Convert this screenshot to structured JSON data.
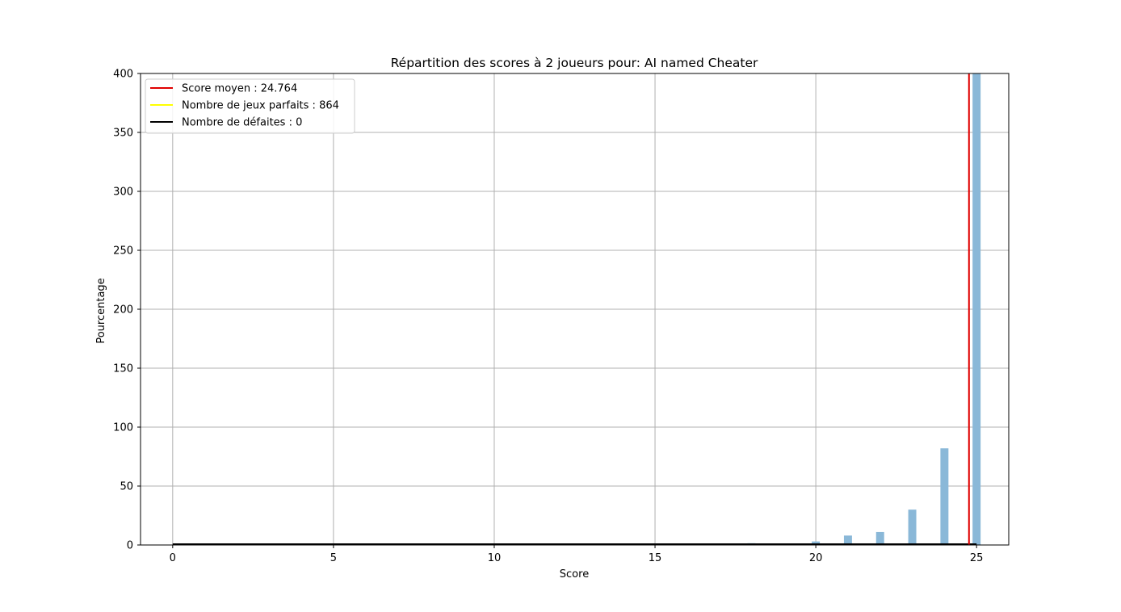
{
  "chart_data": {
    "type": "bar",
    "title": "Répartition des scores à 2 joueurs pour: AI named Cheater",
    "xlabel": "Score",
    "ylabel": "Pourcentage",
    "xlim": [
      -1,
      26
    ],
    "ylim": [
      0,
      400
    ],
    "xticks": [
      0,
      5,
      10,
      15,
      20,
      25
    ],
    "yticks": [
      0,
      50,
      100,
      150,
      200,
      250,
      300,
      350,
      400
    ],
    "grid": true,
    "legend_position": "top-left",
    "bar_color": "#8ab8d8",
    "bars": [
      {
        "x": 18,
        "value": 1.5
      },
      {
        "x": 20,
        "value": 3
      },
      {
        "x": 21,
        "value": 8
      },
      {
        "x": 22,
        "value": 11
      },
      {
        "x": 23,
        "value": 30
      },
      {
        "x": 24,
        "value": 82
      },
      {
        "x": 25,
        "value": 400
      }
    ],
    "vlines": [
      {
        "name": "Score moyen : 24.764",
        "x": 24.764,
        "color": "#e00000"
      },
      {
        "name": "Nombre de jeux parfaits : 864",
        "x": null,
        "color": "#ffff00"
      },
      {
        "name": "Nombre de défaites : 0",
        "x": null,
        "color": "#000000"
      }
    ]
  }
}
